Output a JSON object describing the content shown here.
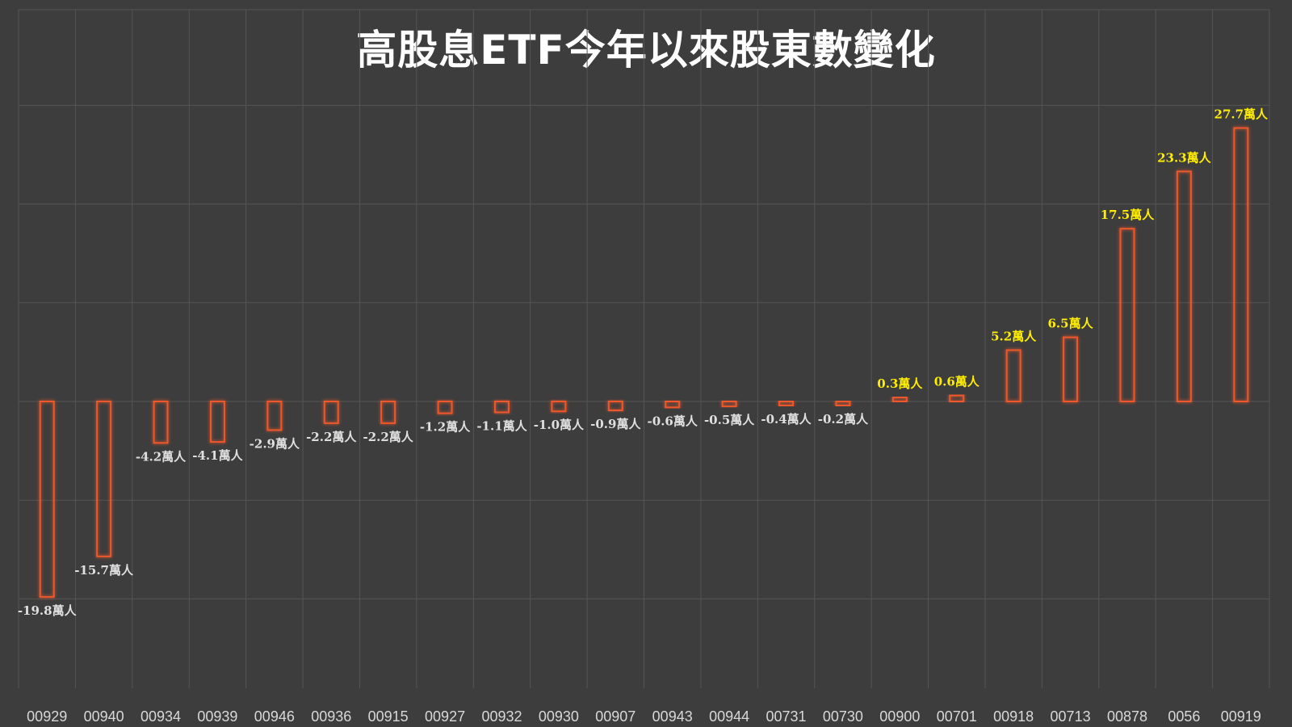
{
  "chart_data": {
    "type": "bar",
    "title": "高股息ETF今年以來股東數變化",
    "categories": [
      "00929",
      "00940",
      "00934",
      "00939",
      "00946",
      "00936",
      "00915",
      "00927",
      "00932",
      "00930",
      "00907",
      "00943",
      "00944",
      "00731",
      "00730",
      "00900",
      "00701",
      "00918",
      "00713",
      "00878",
      "0056",
      "00919"
    ],
    "values": [
      -19.8,
      -15.7,
      -4.2,
      -4.1,
      -2.9,
      -2.2,
      -2.2,
      -1.2,
      -1.1,
      -1.0,
      -0.9,
      -0.6,
      -0.5,
      -0.4,
      -0.2,
      0.3,
      0.6,
      5.2,
      6.5,
      17.5,
      23.3,
      27.7
    ],
    "data_labels": [
      "-19.8萬人",
      "-15.7萬人",
      "-4.2萬人",
      "-4.1萬人",
      "-2.9萬人",
      "-2.2萬人",
      "-2.2萬人",
      "-1.2萬人",
      "-1.1萬人",
      "-1.0萬人",
      "-0.9萬人",
      "-0.6萬人",
      "-0.5萬人",
      "-0.4萬人",
      "-0.2萬人",
      "0.3萬人",
      "0.6萬人",
      "5.2萬人",
      "6.5萬人",
      "17.5萬人",
      "23.3萬人",
      "27.7萬人"
    ],
    "ylim": [
      -30,
      40
    ],
    "grid": true,
    "legend": "none",
    "colors": {
      "background": "#3d3d3d",
      "bar_stroke": "#e8401c",
      "bar_glow": "#ff5a2a",
      "positive_label": "#ffee00",
      "negative_label": "#e0e0e0",
      "tick_label": "#d8d8d8",
      "grid": "#555555"
    }
  }
}
